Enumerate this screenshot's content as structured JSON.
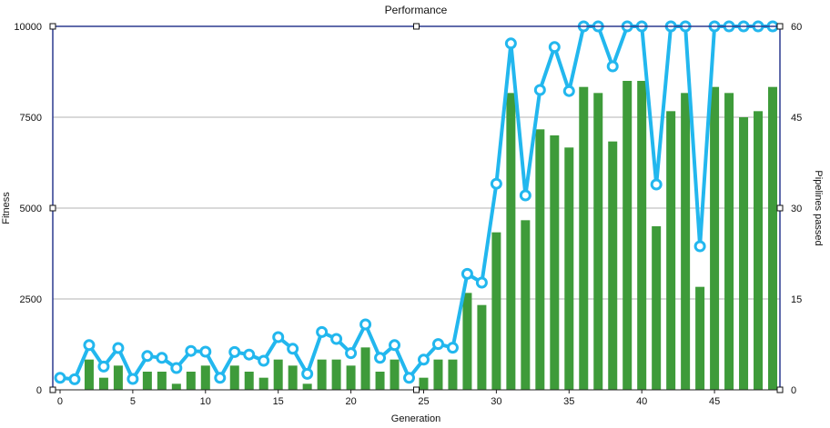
{
  "chart_data": {
    "type": "bar",
    "title": "Performance",
    "xlabel": "Generation",
    "ylabel": "Fitness",
    "y2label": "Pipelines passed",
    "x": [
      0,
      1,
      2,
      3,
      4,
      5,
      6,
      7,
      8,
      9,
      10,
      11,
      12,
      13,
      14,
      15,
      16,
      17,
      18,
      19,
      20,
      21,
      22,
      23,
      24,
      25,
      26,
      27,
      28,
      29,
      30,
      31,
      32,
      33,
      34,
      35,
      36,
      37,
      38,
      39,
      40,
      41,
      42,
      43,
      44,
      45,
      46,
      47,
      48,
      49
    ],
    "xlim": [
      -0.5,
      49.5
    ],
    "ylim": [
      0,
      10000
    ],
    "y2lim": [
      0,
      60
    ],
    "xticks": [
      0,
      5,
      10,
      15,
      20,
      25,
      30,
      35,
      40,
      45
    ],
    "yticks": [
      0,
      2500,
      5000,
      7500,
      10000
    ],
    "y2ticks": [
      0,
      15,
      30,
      45,
      60
    ],
    "grid": true,
    "series": [
      {
        "axis": "right",
        "kind": "bar",
        "color": "#3e9b3a",
        "values": [
          0,
          0,
          5,
          2,
          4,
          0,
          3,
          3,
          1,
          3,
          4,
          0,
          4,
          3,
          2,
          5,
          4,
          1,
          5,
          5,
          4,
          7,
          3,
          5,
          0,
          2,
          5,
          5,
          16,
          14,
          26,
          49,
          28,
          43,
          42,
          40,
          50,
          49,
          41,
          51,
          51,
          27,
          46,
          49,
          17,
          50,
          49,
          45,
          46,
          50
        ]
      },
      {
        "axis": "left",
        "kind": "line",
        "color": "#22b7ee",
        "values": [
          330,
          290,
          1230,
          640,
          1150,
          300,
          930,
          880,
          600,
          1070,
          1050,
          330,
          1040,
          970,
          800,
          1450,
          1130,
          440,
          1590,
          1400,
          1010,
          1800,
          880,
          1230,
          330,
          830,
          1260,
          1160,
          3190,
          2950,
          5670,
          9530,
          5350,
          8250,
          9430,
          8220,
          10000,
          10000,
          8900,
          10000,
          10000,
          5650,
          10000,
          10000,
          3950,
          10000,
          10000,
          10000,
          10000,
          10000
        ]
      }
    ]
  }
}
